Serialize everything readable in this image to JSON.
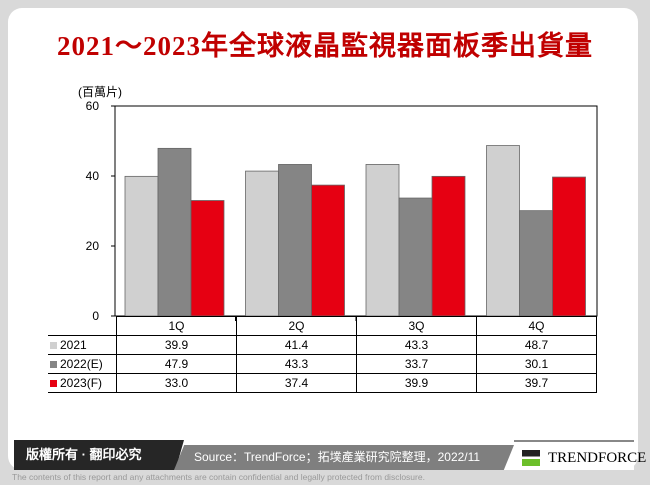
{
  "title": "2021～2023年全球液晶監視器面板季出貨量",
  "chart_data": {
    "type": "bar",
    "ylabel": "(百萬片)",
    "ylim": [
      0,
      60
    ],
    "yticks": [
      0,
      20,
      40,
      60
    ],
    "categories": [
      "1Q",
      "2Q",
      "3Q",
      "4Q"
    ],
    "series": [
      {
        "name": "2021",
        "color": "#d0d0d0",
        "values": [
          39.9,
          41.4,
          43.3,
          48.7
        ],
        "labels": [
          "39.9",
          "41.4",
          "43.3",
          "48.7"
        ]
      },
      {
        "name": "2022(E)",
        "color": "#858585",
        "values": [
          47.9,
          43.3,
          33.7,
          30.1
        ],
        "labels": [
          "47.9",
          "43.3",
          "33.7",
          "30.1"
        ]
      },
      {
        "name": "2023(F)",
        "color": "#e60012",
        "values": [
          33.0,
          37.4,
          39.9,
          39.7
        ],
        "labels": [
          "33.0",
          "37.4",
          "39.9",
          "39.7"
        ]
      }
    ]
  },
  "footer": {
    "copyright": "版權所有 · 翻印必究",
    "source": "Source：TrendForce；拓墣產業研究院整理，2022/11",
    "brand": "TRENDFORCE",
    "disclaimer": "The contents of this report and any attachments are contain confidential and legally protected from disclosure."
  }
}
